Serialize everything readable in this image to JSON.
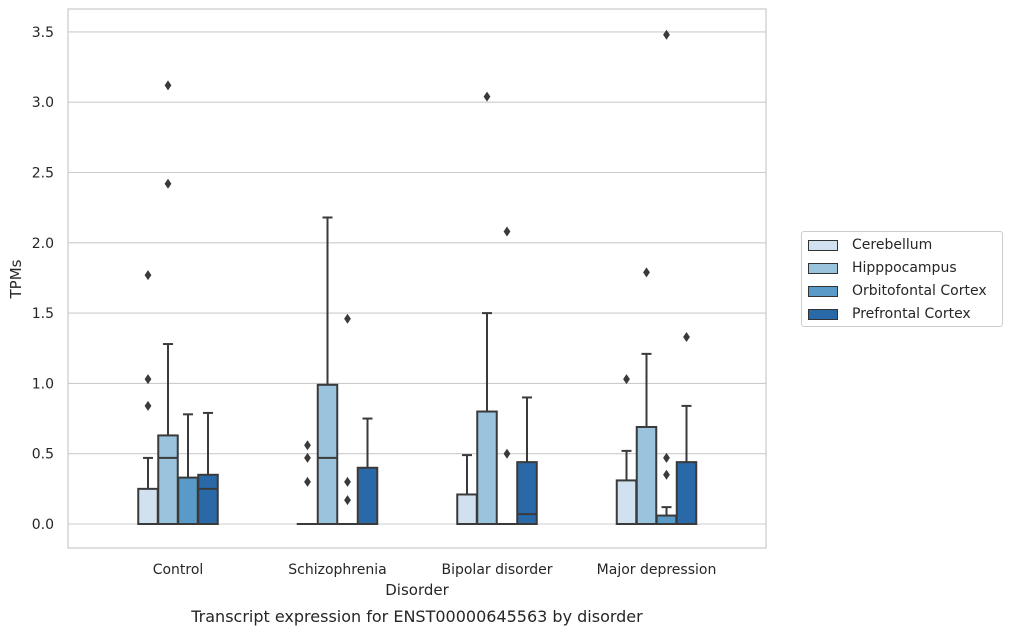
{
  "chart_data": {
    "type": "box",
    "title": "Transcript expression for ENST00000645563 by disorder",
    "xlabel": "Disorder",
    "ylabel": "TPMs",
    "ylim": [
      -0.17,
      3.65
    ],
    "yticks": [
      "0.0",
      "0.5",
      "1.0",
      "1.5",
      "2.0",
      "2.5",
      "3.0",
      "3.5"
    ],
    "grid": "horizontal",
    "legend_position": "right",
    "categories": [
      "Control",
      "Schizophrenia",
      "Bipolar disorder",
      "Major depression"
    ],
    "series": [
      {
        "name": "Cerebellum",
        "color": "#d1e1f0",
        "boxes": [
          {
            "q1": 0.0,
            "median": 0.0,
            "q3": 0.25,
            "whisker_low": 0.0,
            "whisker_high": 0.47,
            "outliers": [
              0.84,
              1.03,
              1.77
            ]
          },
          {
            "q1": 0.0,
            "median": 0.0,
            "q3": 0.0,
            "whisker_low": 0.0,
            "whisker_high": 0.0,
            "outliers": [
              0.3,
              0.47,
              0.56
            ]
          },
          {
            "q1": 0.0,
            "median": 0.0,
            "q3": 0.21,
            "whisker_low": 0.0,
            "whisker_high": 0.49,
            "outliers": []
          },
          {
            "q1": 0.0,
            "median": 0.0,
            "q3": 0.31,
            "whisker_low": 0.0,
            "whisker_high": 0.52,
            "outliers": [
              1.03
            ]
          }
        ]
      },
      {
        "name": "Hipppocampus",
        "color": "#9ac4dd",
        "boxes": [
          {
            "q1": 0.0,
            "median": 0.47,
            "q3": 0.63,
            "whisker_low": 0.0,
            "whisker_high": 1.28,
            "outliers": [
              2.42,
              3.12
            ]
          },
          {
            "q1": 0.0,
            "median": 0.47,
            "q3": 0.99,
            "whisker_low": 0.0,
            "whisker_high": 2.18,
            "outliers": []
          },
          {
            "q1": 0.0,
            "median": 0.0,
            "q3": 0.8,
            "whisker_low": 0.0,
            "whisker_high": 1.5,
            "outliers": [
              3.04
            ]
          },
          {
            "q1": 0.0,
            "median": 0.0,
            "q3": 0.69,
            "whisker_low": 0.0,
            "whisker_high": 1.21,
            "outliers": [
              1.79
            ]
          }
        ]
      },
      {
        "name": "Orbitofontal Cortex",
        "color": "#5a9ac8",
        "boxes": [
          {
            "q1": 0.0,
            "median": 0.0,
            "q3": 0.33,
            "whisker_low": 0.0,
            "whisker_high": 0.78,
            "outliers": []
          },
          {
            "q1": 0.0,
            "median": 0.0,
            "q3": 0.0,
            "whisker_low": 0.0,
            "whisker_high": 0.0,
            "outliers": [
              0.17,
              0.3,
              1.46
            ]
          },
          {
            "q1": 0.0,
            "median": 0.0,
            "q3": 0.0,
            "whisker_low": 0.0,
            "whisker_high": 0.0,
            "outliers": [
              0.5,
              2.08
            ]
          },
          {
            "q1": 0.0,
            "median": 0.0,
            "q3": 0.06,
            "whisker_low": 0.0,
            "whisker_high": 0.12,
            "outliers": [
              0.35,
              0.47,
              3.48
            ]
          }
        ]
      },
      {
        "name": "Prefrontal Cortex",
        "color": "#2a69a8",
        "boxes": [
          {
            "q1": 0.0,
            "median": 0.25,
            "q3": 0.35,
            "whisker_low": 0.0,
            "whisker_high": 0.79,
            "outliers": []
          },
          {
            "q1": 0.0,
            "median": 0.0,
            "q3": 0.4,
            "whisker_low": 0.0,
            "whisker_high": 0.75,
            "outliers": []
          },
          {
            "q1": 0.0,
            "median": 0.07,
            "q3": 0.44,
            "whisker_low": 0.0,
            "whisker_high": 0.9,
            "outliers": []
          },
          {
            "q1": 0.0,
            "median": 0.0,
            "q3": 0.44,
            "whisker_low": 0.0,
            "whisker_high": 0.84,
            "outliers": [
              1.33
            ]
          }
        ]
      }
    ]
  }
}
